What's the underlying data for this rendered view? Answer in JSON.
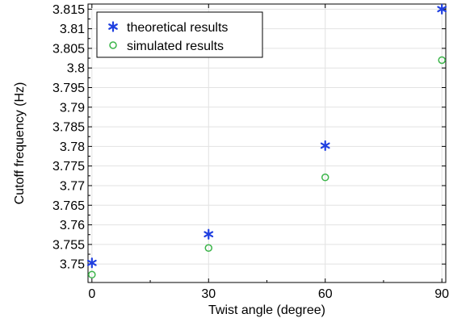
{
  "chart_data": {
    "type": "scatter",
    "xlabel": "Twist angle (degree)",
    "ylabel": "Cutoff frequency (Hz)",
    "xlim": [
      -1,
      91
    ],
    "ylim": [
      3.7453,
      3.8163
    ],
    "x_ticks": [
      0,
      30,
      60,
      90
    ],
    "x_tick_labels": [
      "0",
      "30",
      "60",
      "90"
    ],
    "y_ticks": [
      3.75,
      3.755,
      3.76,
      3.765,
      3.77,
      3.775,
      3.78,
      3.785,
      3.79,
      3.795,
      3.8,
      3.805,
      3.81,
      3.815
    ],
    "y_tick_labels": [
      "3.75",
      "3.755",
      "3.76",
      "3.765",
      "3.77",
      "3.775",
      "3.78",
      "3.785",
      "3.79",
      "3.795",
      "3.8",
      "3.805",
      "3.81",
      "3.815"
    ],
    "grid": true,
    "legend_position": "top-left",
    "series": [
      {
        "name": "theoretical results",
        "marker": "asterisk",
        "color": "#1f3fe0",
        "x": [
          0,
          30,
          60,
          90
        ],
        "y": [
          3.7503,
          3.7576,
          3.7802,
          3.815
        ]
      },
      {
        "name": "simulated results",
        "marker": "circle",
        "color": "#3cb54a",
        "x": [
          0,
          30,
          60,
          90
        ],
        "y": [
          3.7473,
          3.7541,
          3.7721,
          3.802
        ]
      }
    ]
  }
}
